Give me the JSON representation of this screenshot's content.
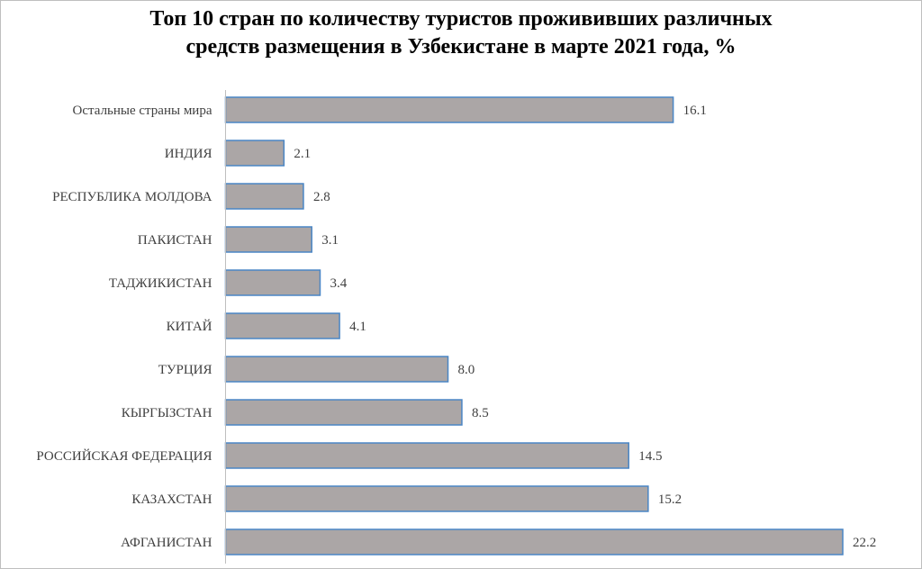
{
  "chart_data": {
    "type": "bar",
    "orientation": "horizontal",
    "title_lines": [
      "Топ 10 стран по количеству туристов прожививших различных",
      "средств размещения в Узбекистане в марте 2021 года, %"
    ],
    "categories": [
      "Остальные страны мира",
      "ИНДИЯ",
      "РЕСПУБЛИКА МОЛДОВА",
      "ПАКИСТАН",
      "ТАДЖИКИСТАН",
      "КИТАЙ",
      "ТУРЦИЯ",
      "КЫРГЫЗСТАН",
      "РОССИЙСКАЯ ФЕДЕРАЦИЯ",
      "КАЗАХСТАН",
      "АФГАНИСТАН"
    ],
    "values": [
      16.1,
      2.1,
      2.8,
      3.1,
      3.4,
      4.1,
      8.0,
      8.5,
      14.5,
      15.2,
      22.2
    ],
    "value_labels": [
      "16.1",
      "2.1",
      "2.8",
      "3.1",
      "3.4",
      "4.1",
      "8.0",
      "8.5",
      "14.5",
      "15.2",
      "22.2"
    ],
    "xlim": [
      0,
      22.2
    ],
    "grid": false,
    "legend": "none",
    "bar_fill": "#aba6a6",
    "bar_stroke": "#4a86c5",
    "axis_color": "#bfbfbf"
  }
}
